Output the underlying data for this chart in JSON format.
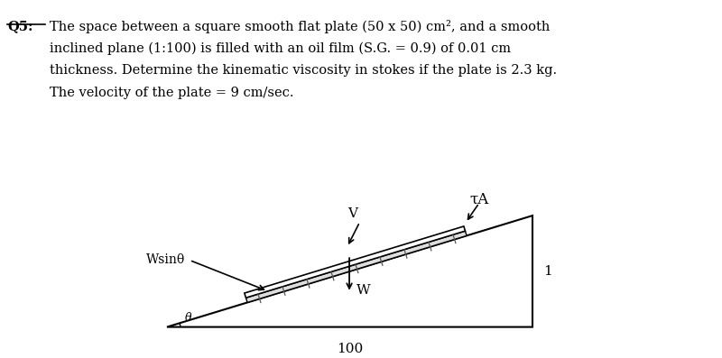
{
  "title_label": "Q5:",
  "text_line1": "The space between a square smooth flat plate (50 x 50) cm², and a smooth",
  "text_line2": "inclined plane (1:100) is filled with an oil film (S.G. = 0.9) of 0.01 cm",
  "text_line3": "thickness. Determine the kinematic viscosity in stokes if the plate is 2.3 kg.",
  "text_line4": "The velocity of the plate = 9 cm/sec.",
  "label_tau_A": "τA",
  "label_V": "V",
  "label_W": "W",
  "label_Wsin": "Wsinθ",
  "label_theta": "θ",
  "label_100": "100",
  "label_1": "1",
  "bg_color": "#ffffff",
  "text_color": "#000000"
}
